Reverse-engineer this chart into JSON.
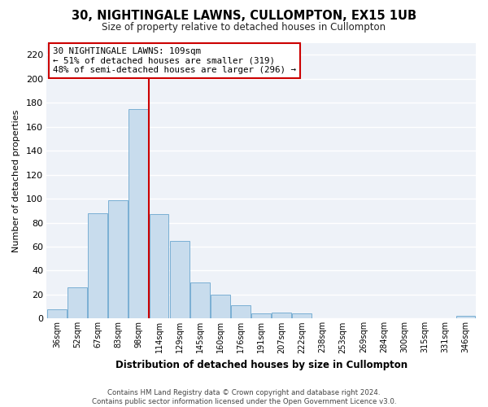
{
  "title": "30, NIGHTINGALE LAWNS, CULLOMPTON, EX15 1UB",
  "subtitle": "Size of property relative to detached houses in Cullompton",
  "xlabel": "Distribution of detached houses by size in Cullompton",
  "ylabel": "Number of detached properties",
  "bar_color": "#c8dced",
  "bar_edge_color": "#7aafd4",
  "bg_color": "#eef2f8",
  "grid_color": "#ffffff",
  "vline_color": "#cc0000",
  "annotation_line1": "30 NIGHTINGALE LAWNS: 109sqm",
  "annotation_line2": "← 51% of detached houses are smaller (319)",
  "annotation_line3": "48% of semi-detached houses are larger (296) →",
  "annotation_box_color": "#cc0000",
  "categories": [
    "36sqm",
    "52sqm",
    "67sqm",
    "83sqm",
    "98sqm",
    "114sqm",
    "129sqm",
    "145sqm",
    "160sqm",
    "176sqm",
    "191sqm",
    "207sqm",
    "222sqm",
    "238sqm",
    "253sqm",
    "269sqm",
    "284sqm",
    "300sqm",
    "315sqm",
    "331sqm",
    "346sqm"
  ],
  "values": [
    8,
    26,
    88,
    99,
    175,
    87,
    65,
    30,
    20,
    11,
    4,
    5,
    4,
    0,
    0,
    0,
    0,
    0,
    0,
    0,
    2
  ],
  "vline_bar_index": 4,
  "ylim": [
    0,
    230
  ],
  "yticks": [
    0,
    20,
    40,
    60,
    80,
    100,
    120,
    140,
    160,
    180,
    200,
    220
  ],
  "footer_line1": "Contains HM Land Registry data © Crown copyright and database right 2024.",
  "footer_line2": "Contains public sector information licensed under the Open Government Licence v3.0."
}
